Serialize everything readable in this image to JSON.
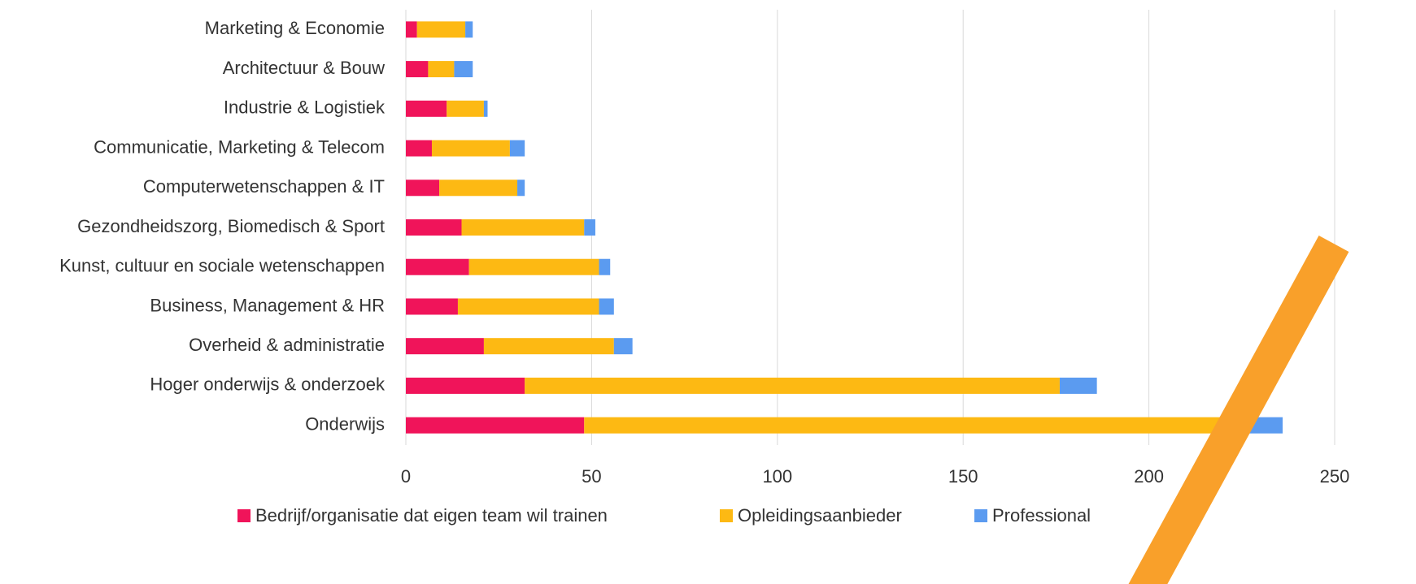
{
  "chart_data": {
    "type": "stacked-barh",
    "categories": [
      "Marketing & Economie",
      "Architectuur & Bouw",
      "Industrie & Logistiek",
      "Communicatie, Marketing & Telecom",
      "Computerwetenschappen & IT",
      "Gezondheidszorg, Biomedisch & Sport",
      "Kunst, cultuur en sociale wetenschappen",
      "Business, Management & HR",
      "Overheid & administratie",
      "Hoger onderwijs & onderzoek",
      "Onderwijs"
    ],
    "series": [
      {
        "name": "Bedrijf/organisatie dat eigen team wil trainen",
        "color": "#f0145a",
        "values": [
          3,
          6,
          11,
          7,
          9,
          15,
          17,
          14,
          21,
          32,
          48
        ]
      },
      {
        "name": "Opleidingsaanbieder",
        "color": "#fdb913",
        "values": [
          13,
          7,
          10,
          21,
          21,
          33,
          35,
          38,
          35,
          144,
          176
        ]
      },
      {
        "name": "Professional",
        "color": "#5b9bf0",
        "values": [
          2,
          5,
          1,
          4,
          2,
          3,
          3,
          4,
          5,
          10,
          12
        ]
      }
    ],
    "xlim": [
      0,
      250
    ],
    "xticks": [
      0,
      50,
      100,
      150,
      200,
      250
    ],
    "grid": true,
    "legend": "bottom"
  }
}
